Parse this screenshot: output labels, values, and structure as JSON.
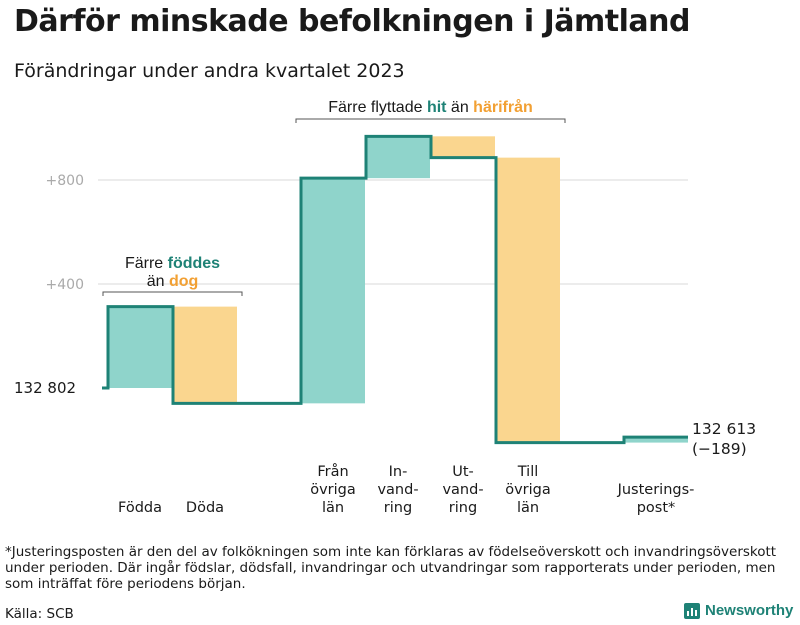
{
  "title": "Därför minskade befolkningen i Jämtland",
  "subtitle": "Förändringar under andra kvartalet 2023",
  "footnote": "*Justeringsposten är den del av folkökningen som inte kan förklaras av födelseöverskott och invandringsöverskott under perioden. Där ingår födslar, dödsfall, invandringar och utvandringar som rapporterats under perioden, men som inträffat före periodens början.",
  "source": "Källa: SCB",
  "brand": "Newsworthy",
  "colors": {
    "increase": "#8fd4cb",
    "decrease": "#fad68f",
    "line": "#1e8276",
    "teal_text": "#1e8276",
    "orange_text": "#f2a033",
    "grid": "#d9d9d9",
    "tick": "#aaaaaa"
  },
  "chart_data": {
    "type": "bar",
    "subtype": "waterfall",
    "start": {
      "value": 132802,
      "label": "132   802"
    },
    "end": {
      "value": 132613,
      "label": "132 613",
      "change_label": "(−189)"
    },
    "yticks": [
      {
        "value": 400,
        "label": "+400"
      },
      {
        "value": 800,
        "label": "+800"
      }
    ],
    "grid": true,
    "steps": [
      {
        "label": [
          "Födda"
        ],
        "delta": 313
      },
      {
        "label": [
          "Döda"
        ],
        "delta": -372
      },
      {
        "label": [
          "Från",
          "övriga",
          "län"
        ],
        "delta": 866
      },
      {
        "label": [
          "In-",
          "vand-",
          "ring"
        ],
        "delta": 161
      },
      {
        "label": [
          "Ut-",
          "vand-",
          "ring"
        ],
        "delta": -82
      },
      {
        "label": [
          "Till",
          "övriga",
          "län"
        ],
        "delta": -1096
      },
      {
        "label": [
          "Justerings-",
          "post*"
        ],
        "delta": 21
      }
    ],
    "annotations": [
      {
        "parts": [
          [
            "Färre ",
            "plain"
          ],
          [
            "föddes",
            "teal"
          ]
        ],
        "parts2": [
          [
            "än ",
            "plain"
          ],
          [
            "dog",
            "orange"
          ]
        ],
        "from_step": 0,
        "to_step": 1
      },
      {
        "parts": [
          [
            "Färre flyttade ",
            "plain"
          ],
          [
            "hit",
            "teal"
          ],
          [
            " än ",
            "plain"
          ],
          [
            "härifrån",
            "orange"
          ]
        ],
        "from_step": 2,
        "to_step": 5
      }
    ]
  }
}
